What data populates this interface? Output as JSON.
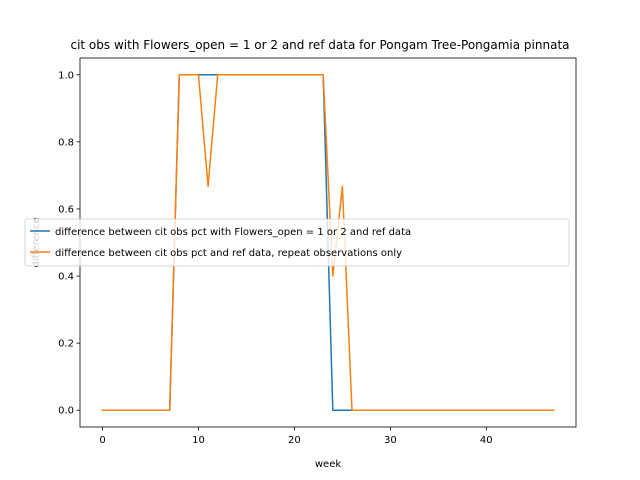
{
  "chart_data": {
    "type": "line",
    "title": "cit obs with Flowers_open = 1 or 2 and ref data for Pongam Tree-Pongamia pinnata",
    "xlabel": "week",
    "ylabel": "difference",
    "xlim": [
      -2.35,
      49.35
    ],
    "ylim": [
      -0.05,
      1.05
    ],
    "xticks": [
      0,
      10,
      20,
      30,
      40
    ],
    "yticks": [
      0.0,
      0.2,
      0.4,
      0.6,
      0.8,
      1.0
    ],
    "legend_position": "center-left",
    "series": [
      {
        "name": "difference between cit obs pct with Flowers_open = 1 or 2 and ref data",
        "color": "#1f77b4",
        "x": [
          0,
          1,
          2,
          3,
          4,
          5,
          6,
          7,
          8,
          9,
          10,
          11,
          12,
          13,
          14,
          15,
          16,
          17,
          18,
          19,
          20,
          21,
          22,
          23,
          24,
          25,
          26,
          27,
          28,
          29,
          30,
          31,
          32,
          33,
          34,
          35,
          36,
          37,
          38,
          39,
          40,
          41,
          42,
          43,
          44,
          45,
          46,
          47
        ],
        "values": [
          0,
          0,
          0,
          0,
          0,
          0,
          0,
          0,
          1,
          1,
          1,
          1,
          1,
          1,
          1,
          1,
          1,
          1,
          1,
          1,
          1,
          1,
          1,
          1,
          0,
          0,
          0,
          0,
          0,
          0,
          0,
          0,
          0,
          0,
          0,
          0,
          0,
          0,
          0,
          0,
          0,
          0,
          0,
          0,
          0,
          0,
          0,
          0
        ]
      },
      {
        "name": "difference between cit obs pct and ref data, repeat observations only",
        "color": "#ff7f0e",
        "x": [
          0,
          1,
          2,
          3,
          4,
          5,
          6,
          7,
          8,
          9,
          10,
          11,
          12,
          13,
          14,
          15,
          16,
          17,
          18,
          19,
          20,
          21,
          22,
          23,
          24,
          25,
          26,
          27,
          28,
          29,
          30,
          31,
          32,
          33,
          34,
          35,
          36,
          37,
          38,
          39,
          40,
          41,
          42,
          43,
          44,
          45,
          46,
          47
        ],
        "values": [
          0,
          0,
          0,
          0,
          0,
          0,
          0,
          0,
          1,
          1,
          1,
          0.667,
          1,
          1,
          1,
          1,
          1,
          1,
          1,
          1,
          1,
          1,
          1,
          1,
          0.4,
          0.667,
          0,
          0,
          0,
          0,
          0,
          0,
          0,
          0,
          0,
          0,
          0,
          0,
          0,
          0,
          0,
          0,
          0,
          0,
          0,
          0,
          0,
          0
        ]
      }
    ]
  }
}
